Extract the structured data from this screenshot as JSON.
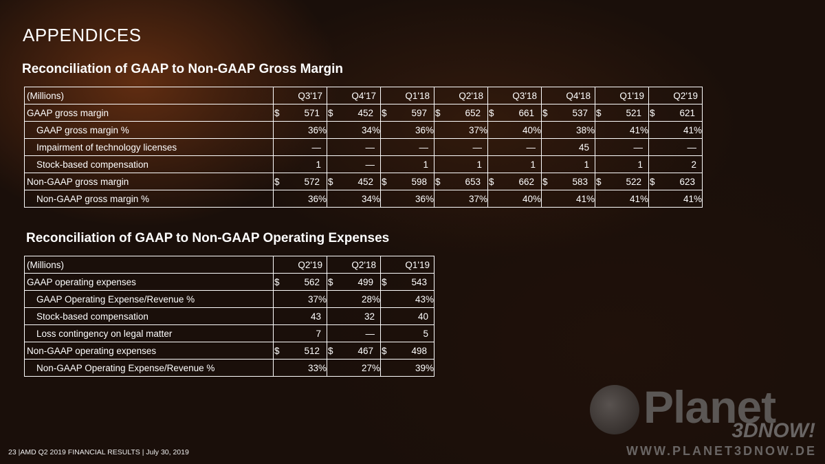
{
  "page": {
    "title": "APPENDICES",
    "footer": "23  |AMD Q2 2019 FINANCIAL RESULTS |  July 30, 2019"
  },
  "gross_margin": {
    "heading": "Reconciliation of GAAP to Non-GAAP Gross Margin",
    "header_label": "(Millions)",
    "periods": [
      "Q3'17",
      "Q4'17",
      "Q1'18",
      "Q2'18",
      "Q3'18",
      "Q4'18",
      "Q1'19",
      "Q2'19"
    ],
    "rows": [
      {
        "label": "GAAP gross margin",
        "dollar": true,
        "values": [
          "571",
          "452",
          "597",
          "652",
          "661",
          "537",
          "521",
          "621"
        ]
      },
      {
        "label": "GAAP gross margin %",
        "values": [
          "36%",
          "34%",
          "36%",
          "37%",
          "40%",
          "38%",
          "41%",
          "41%"
        ]
      },
      {
        "label": "Impairment of technology licenses",
        "values": [
          "—",
          "—",
          "—",
          "—",
          "—",
          "45",
          "—",
          "—"
        ]
      },
      {
        "label": "Stock-based compensation",
        "values": [
          "1",
          "—",
          "1",
          "1",
          "1",
          "1",
          "1",
          "2"
        ]
      },
      {
        "label": "Non-GAAP gross margin",
        "dollar": true,
        "values": [
          "572",
          "452",
          "598",
          "653",
          "662",
          "583",
          "522",
          "623"
        ]
      },
      {
        "label": "Non-GAAP gross margin %",
        "values": [
          "36%",
          "34%",
          "36%",
          "37%",
          "40%",
          "41%",
          "41%",
          "41%"
        ]
      }
    ]
  },
  "operating_expenses": {
    "heading": "Reconciliation of GAAP to Non-GAAP Operating Expenses",
    "header_label": "(Millions)",
    "periods": [
      "Q2'19",
      "Q2'18",
      "Q1'19"
    ],
    "rows": [
      {
        "label": "GAAP operating expenses",
        "dollar": true,
        "values": [
          "562",
          "499",
          "543"
        ]
      },
      {
        "label": "GAAP Operating Expense/Revenue %",
        "values": [
          "37%",
          "28%",
          "43%"
        ]
      },
      {
        "label": "Stock-based compensation",
        "values": [
          "43",
          "32",
          "40"
        ]
      },
      {
        "label": "Loss contingency on legal matter",
        "values": [
          "7",
          "—",
          "5"
        ]
      },
      {
        "label": "Non-GAAP operating expenses",
        "dollar": true,
        "values": [
          "512",
          "467",
          "498"
        ]
      },
      {
        "label": "Non-GAAP Operating Expense/Revenue %",
        "values": [
          "33%",
          "27%",
          "39%"
        ]
      }
    ]
  },
  "watermark": {
    "brand": "Planet",
    "tagline": "3DNOW!",
    "url": "WWW.PLANET3DNOW.DE"
  }
}
